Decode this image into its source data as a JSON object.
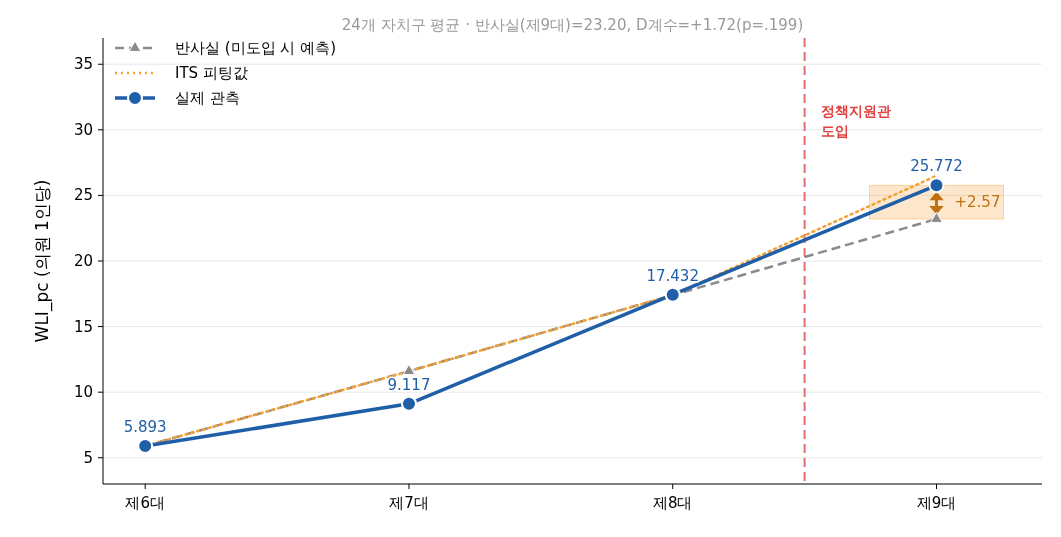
{
  "chart_data": {
    "type": "line",
    "title": "24개 자치구 평균 · 반사실(제9대)=23.20, D계수=+1.72(p=.199)",
    "ylabel": "WLI_pc (의원 1인당)",
    "categories": [
      "제6대",
      "제7대",
      "제8대",
      "제9대"
    ],
    "series": [
      {
        "name": "반사실 (미도입 시 예측)",
        "color": "#8a8a8a",
        "values": [
          5.9,
          11.6,
          17.4,
          23.2
        ],
        "marker": "triangle",
        "line_style": "dashed"
      },
      {
        "name": "ITS 피팅값",
        "color": "#f5a032",
        "values": [
          5.9,
          11.6,
          17.4,
          26.5
        ],
        "marker": "none",
        "line_style": "dotted"
      },
      {
        "name": "실제 관측",
        "color": "#1f5fa8",
        "values": [
          5.893,
          9.117,
          17.432,
          25.772
        ],
        "marker": "circle",
        "line_style": "solid",
        "value_labels": [
          "5.893",
          "9.117",
          "17.432",
          "25.772"
        ]
      }
    ],
    "ylim": [
      3,
      37
    ],
    "yticks": [
      5,
      10,
      15,
      20,
      25,
      30,
      35
    ],
    "grid": "y",
    "legend": "top left",
    "annotations": [
      "정책지원관 도입",
      "+2.57"
    ]
  }
}
